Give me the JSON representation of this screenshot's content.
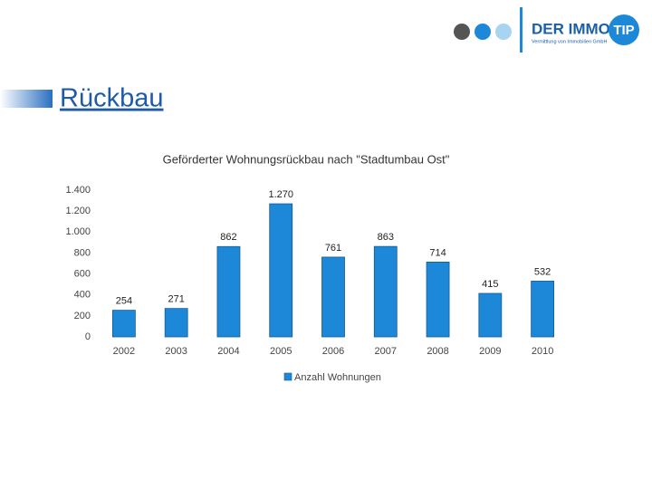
{
  "header": {
    "logo_main": "DER IMMO",
    "logo_badge": "TIP",
    "logo_sub": "Vermittlung von Immobilien GmbH",
    "title": "Rückbau"
  },
  "chart_data": {
    "type": "bar",
    "title": "Geförderter Wohnungsrückbau nach \"Stadtumbau Ost\"",
    "categories": [
      "2002",
      "2003",
      "2004",
      "2005",
      "2006",
      "2007",
      "2008",
      "2009",
      "2010"
    ],
    "series": [
      {
        "name": "Anzahl Wohnungen",
        "color": "#1e88d8",
        "values": [
          254,
          271,
          862,
          1270,
          761,
          863,
          714,
          415,
          532
        ],
        "value_labels": [
          "254",
          "271",
          "862",
          "1.270",
          "761",
          "863",
          "714",
          "415",
          "532"
        ]
      }
    ],
    "ylim": [
      0,
      1400
    ],
    "yticks": [
      0,
      200,
      400,
      600,
      800,
      {
        "value": 1000,
        "label": "1.000"
      },
      {
        "value": 1200,
        "label": "1.200"
      },
      {
        "value": 1400,
        "label": "1.400"
      }
    ],
    "grid": false,
    "legend": "bottom"
  }
}
